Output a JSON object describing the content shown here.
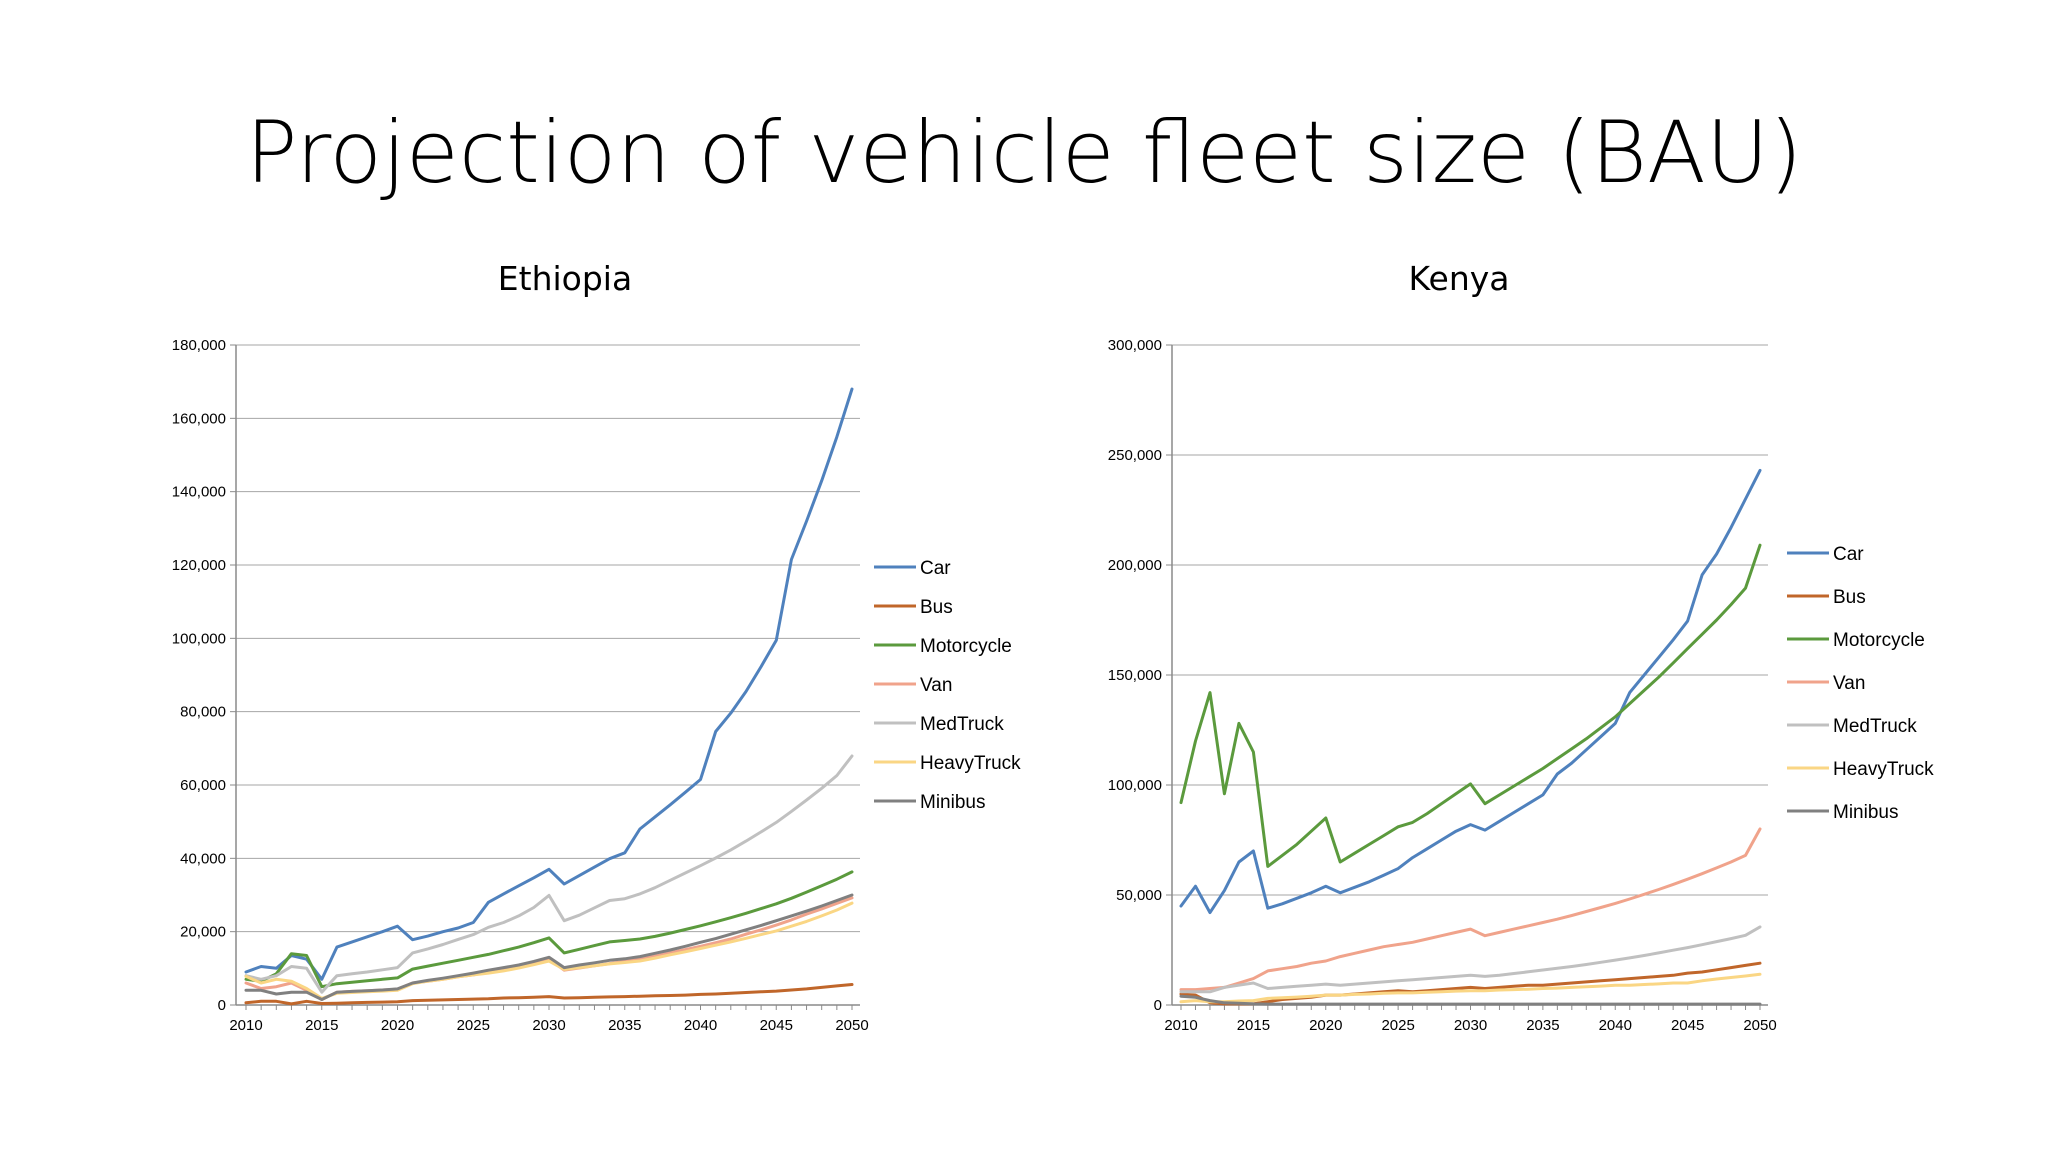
{
  "slide": {
    "title": "Projection of vehicle fleet size (BAU)"
  },
  "chart_data": [
    {
      "type": "line",
      "title": "Ethiopia",
      "xlabel": "",
      "ylabel": "",
      "ylim": [
        0,
        180000
      ],
      "y_ticks": [
        0,
        20000,
        40000,
        60000,
        80000,
        100000,
        120000,
        140000,
        160000,
        180000
      ],
      "y_tick_labels": [
        "0",
        "20,000",
        "40,000",
        "60,000",
        "80,000",
        "100,000",
        "120,000",
        "140,000",
        "160,000",
        "180,000"
      ],
      "x_ticks": [
        "2010",
        "2015",
        "2020",
        "2025",
        "2030",
        "2035",
        "2040",
        "2045",
        "2050"
      ],
      "grid": "horizontal",
      "legend_position": "right",
      "x": [
        2010,
        2011,
        2012,
        2013,
        2014,
        2015,
        2016,
        2017,
        2018,
        2019,
        2020,
        2021,
        2022,
        2023,
        2024,
        2025,
        2026,
        2027,
        2028,
        2029,
        2030,
        2031,
        2032,
        2033,
        2034,
        2035,
        2036,
        2037,
        2038,
        2039,
        2040,
        2041,
        2042,
        2043,
        2044,
        2045,
        2046,
        2047,
        2048,
        2049,
        2050
      ],
      "series": [
        {
          "name": "Car",
          "color": "#4f81bd",
          "values": [
            9000,
            10500,
            10000,
            13500,
            12500,
            7000,
            15800,
            17200,
            18600,
            20000,
            21500,
            17800,
            18800,
            20000,
            21000,
            22500,
            28000,
            30300,
            32500,
            34700,
            37000,
            33000,
            35300,
            37600,
            39900,
            41500,
            48000,
            51300,
            54600,
            58000,
            61500,
            74600,
            79600,
            85500,
            92300,
            99500,
            121500,
            132000,
            143000,
            155000,
            168000
          ]
        },
        {
          "name": "Bus",
          "color": "#c0662a",
          "values": [
            600,
            1000,
            1000,
            300,
            1000,
            400,
            500,
            600,
            700,
            800,
            900,
            1200,
            1300,
            1400,
            1500,
            1600,
            1700,
            1900,
            2000,
            2100,
            2300,
            1900,
            2000,
            2100,
            2200,
            2300,
            2400,
            2500,
            2600,
            2700,
            2900,
            3000,
            3200,
            3400,
            3600,
            3800,
            4100,
            4400,
            4800,
            5200,
            5600
          ]
        },
        {
          "name": "Motorcycle",
          "color": "#5b9a3d",
          "values": [
            7000,
            6500,
            8500,
            14000,
            13500,
            5000,
            5800,
            6200,
            6600,
            7000,
            7400,
            9800,
            10600,
            11400,
            12200,
            13000,
            13800,
            14800,
            15800,
            17000,
            18300,
            14200,
            15200,
            16200,
            17200,
            17600,
            18000,
            18700,
            19600,
            20600,
            21600,
            22700,
            23800,
            25000,
            26300,
            27600,
            29100,
            30800,
            32500,
            34300,
            36300
          ]
        },
        {
          "name": "Van",
          "color": "#f0a38b",
          "values": [
            6000,
            4500,
            5000,
            6000,
            4000,
            1500,
            3500,
            3700,
            3900,
            4100,
            4300,
            6000,
            6500,
            7000,
            7700,
            8200,
            9000,
            9700,
            10500,
            11400,
            12500,
            9500,
            10100,
            10700,
            11300,
            11900,
            12600,
            13300,
            14200,
            15100,
            16000,
            17000,
            18000,
            19300,
            20500,
            21800,
            23200,
            24800,
            26200,
            27700,
            29200
          ]
        },
        {
          "name": "MedTruck",
          "color": "#c0c0c0",
          "values": [
            8000,
            7000,
            8000,
            10500,
            10000,
            3500,
            8000,
            8500,
            9000,
            9600,
            10200,
            14200,
            15300,
            16500,
            17900,
            19200,
            21200,
            22500,
            24300,
            26600,
            29900,
            23000,
            24500,
            26500,
            28500,
            29000,
            30300,
            32000,
            34000,
            36000,
            38000,
            40100,
            42300,
            44700,
            47200,
            49800,
            52800,
            55900,
            59100,
            62600,
            67900
          ]
        },
        {
          "name": "HeavyTruck",
          "color": "#fad684",
          "values": [
            7800,
            6000,
            7000,
            6500,
            4500,
            1800,
            3200,
            3400,
            3600,
            3800,
            4000,
            5800,
            6500,
            7000,
            7700,
            8200,
            8700,
            9300,
            10100,
            11000,
            12000,
            9700,
            10200,
            10700,
            11200,
            11600,
            12000,
            12800,
            13700,
            14500,
            15400,
            16300,
            17200,
            18200,
            19200,
            20200,
            21500,
            22800,
            24300,
            25900,
            27800
          ]
        },
        {
          "name": "Minibus",
          "color": "#808080",
          "values": [
            4000,
            4000,
            3000,
            3500,
            3500,
            1500,
            3500,
            3700,
            3900,
            4100,
            4400,
            6000,
            6700,
            7300,
            8000,
            8700,
            9500,
            10200,
            10900,
            11900,
            13000,
            10200,
            10900,
            11500,
            12200,
            12600,
            13200,
            14100,
            15000,
            16000,
            17100,
            18100,
            19300,
            20500,
            21700,
            23000,
            24300,
            25600,
            27000,
            28500,
            30000
          ]
        }
      ]
    },
    {
      "type": "line",
      "title": "Kenya",
      "xlabel": "",
      "ylabel": "",
      "ylim": [
        0,
        300000
      ],
      "y_ticks": [
        0,
        50000,
        100000,
        150000,
        200000,
        250000,
        300000
      ],
      "y_tick_labels": [
        "0",
        "50,000",
        "100,000",
        "150,000",
        "200,000",
        "250,000",
        "300,000"
      ],
      "x_ticks": [
        "2010",
        "2015",
        "2020",
        "2025",
        "2030",
        "2035",
        "2040",
        "2045",
        "2050"
      ],
      "grid": "horizontal",
      "legend_position": "right",
      "x": [
        2010,
        2011,
        2012,
        2013,
        2014,
        2015,
        2016,
        2017,
        2018,
        2019,
        2020,
        2021,
        2022,
        2023,
        2024,
        2025,
        2026,
        2027,
        2028,
        2029,
        2030,
        2031,
        2032,
        2033,
        2034,
        2035,
        2036,
        2037,
        2038,
        2039,
        2040,
        2041,
        2042,
        2043,
        2044,
        2045,
        2046,
        2047,
        2048,
        2049,
        2050
      ],
      "series": [
        {
          "name": "Car",
          "color": "#4f81bd",
          "values": [
            45000,
            54000,
            42000,
            52000,
            65000,
            70000,
            44000,
            46000,
            48500,
            51000,
            54000,
            51000,
            53500,
            56000,
            59000,
            62000,
            67000,
            71000,
            75000,
            79000,
            82000,
            79500,
            83500,
            87500,
            91500,
            95500,
            105000,
            110000,
            116000,
            122000,
            128000,
            142000,
            150000,
            158000,
            166000,
            174500,
            195500,
            205000,
            217000,
            230000,
            243000
          ]
        },
        {
          "name": "Bus",
          "color": "#c0662a",
          "values": [
            5000,
            4500,
            1000,
            500,
            500,
            500,
            1500,
            2500,
            3000,
            3500,
            4500,
            4500,
            5000,
            5500,
            6000,
            6500,
            6000,
            6500,
            7000,
            7500,
            8000,
            7500,
            8000,
            8500,
            9000,
            9000,
            9500,
            10000,
            10500,
            11000,
            11500,
            12000,
            12500,
            13000,
            13500,
            14500,
            15000,
            16000,
            17000,
            18000,
            19000
          ]
        },
        {
          "name": "Motorcycle",
          "color": "#5b9a3d",
          "values": [
            92000,
            120000,
            142000,
            96000,
            128000,
            115000,
            63000,
            68000,
            73000,
            79000,
            85000,
            65000,
            69000,
            73000,
            77000,
            81000,
            83000,
            87000,
            91500,
            96000,
            100500,
            91500,
            95500,
            99500,
            103500,
            107500,
            112000,
            116500,
            121000,
            126000,
            131000,
            137000,
            143000,
            149000,
            155500,
            162000,
            168500,
            175000,
            182000,
            189500,
            209000
          ]
        },
        {
          "name": "Van",
          "color": "#f0a38b",
          "values": [
            7000,
            7000,
            7500,
            8000,
            10000,
            12000,
            15500,
            16500,
            17500,
            19000,
            20000,
            22000,
            23500,
            25000,
            26500,
            27500,
            28500,
            30000,
            31500,
            33000,
            34500,
            31500,
            33000,
            34500,
            36000,
            37500,
            39000,
            40700,
            42500,
            44300,
            46200,
            48200,
            50300,
            52500,
            54800,
            57200,
            59700,
            62300,
            65000,
            68000,
            80000
          ]
        },
        {
          "name": "MedTruck",
          "color": "#c0c0c0",
          "values": [
            6000,
            6000,
            6000,
            8000,
            9000,
            10000,
            7500,
            8000,
            8500,
            9000,
            9500,
            9000,
            9500,
            10000,
            10500,
            11000,
            11500,
            12000,
            12500,
            13000,
            13500,
            13000,
            13500,
            14300,
            15100,
            15900,
            16700,
            17500,
            18400,
            19400,
            20400,
            21400,
            22500,
            23700,
            24900,
            26100,
            27400,
            28800,
            30200,
            31700,
            35500
          ]
        },
        {
          "name": "HeavyTruck",
          "color": "#fad684",
          "values": [
            1500,
            2000,
            1500,
            1500,
            1800,
            2000,
            3000,
            3300,
            3600,
            4000,
            4500,
            4500,
            4800,
            5000,
            5300,
            5500,
            5500,
            5800,
            6000,
            6300,
            6500,
            6500,
            6800,
            7000,
            7200,
            7500,
            7700,
            8000,
            8300,
            8600,
            9000,
            9000,
            9300,
            9600,
            10000,
            10000,
            11000,
            11800,
            12500,
            13200,
            14000
          ]
        },
        {
          "name": "Minibus",
          "color": "#808080",
          "values": [
            4000,
            3500,
            2000,
            1000,
            800,
            500,
            400,
            400,
            400,
            400,
            400,
            400,
            400,
            400,
            400,
            400,
            400,
            400,
            400,
            400,
            400,
            400,
            400,
            400,
            400,
            400,
            400,
            400,
            400,
            400,
            400,
            400,
            400,
            400,
            400,
            400,
            400,
            400,
            400,
            400,
            400
          ]
        }
      ]
    }
  ]
}
